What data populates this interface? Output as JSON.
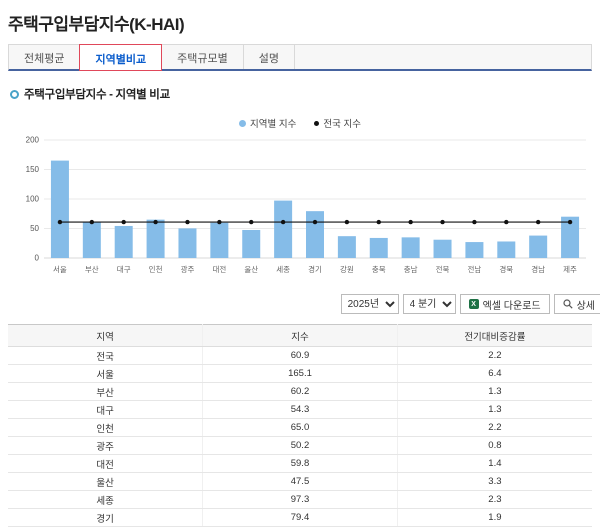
{
  "page": {
    "title": "주택구입부담지수(K-HAI)"
  },
  "tabs": [
    {
      "label": "전체평균",
      "active": false
    },
    {
      "label": "지역별비교",
      "active": true
    },
    {
      "label": "주택규모별",
      "active": false
    },
    {
      "label": "설명",
      "active": false
    }
  ],
  "section": {
    "title": "주택구입부담지수 - 지역별 비교"
  },
  "legend": [
    {
      "label": "지역별 지수",
      "color": "#85bce8"
    },
    {
      "label": "전국 지수",
      "color": "#111111"
    }
  ],
  "controls": {
    "year": "2025년",
    "quarter": "4 분기",
    "excel_label": "엑셀 다운로드",
    "detail_label": "상세"
  },
  "chart_data": {
    "type": "bar",
    "title": "주택구입부담지수 - 지역별 비교",
    "categories": [
      "서울",
      "부산",
      "대구",
      "인천",
      "광주",
      "대전",
      "울산",
      "세종",
      "경기",
      "강원",
      "충북",
      "충남",
      "전북",
      "전남",
      "경북",
      "경남",
      "제주"
    ],
    "series": [
      {
        "name": "지역별 지수",
        "type": "bar",
        "color": "#85bce8",
        "values": [
          165.1,
          60.2,
          54.3,
          65.0,
          50.2,
          59.8,
          47.5,
          97.3,
          79.4,
          37,
          34,
          35,
          31,
          27,
          28,
          38,
          70
        ]
      },
      {
        "name": "전국 지수",
        "type": "line",
        "color": "#111111",
        "values": [
          60.9,
          60.9,
          60.9,
          60.9,
          60.9,
          60.9,
          60.9,
          60.9,
          60.9,
          60.9,
          60.9,
          60.9,
          60.9,
          60.9,
          60.9,
          60.9,
          60.9
        ]
      }
    ],
    "ylim": [
      0,
      200
    ],
    "yticks": [
      0,
      50,
      100,
      150,
      200
    ],
    "grid": true,
    "legend_position": "top-center"
  },
  "table": {
    "columns": [
      "지역",
      "지수",
      "전기대비증감률"
    ],
    "rows": [
      [
        "전국",
        "60.9",
        "2.2"
      ],
      [
        "서울",
        "165.1",
        "6.4"
      ],
      [
        "부산",
        "60.2",
        "1.3"
      ],
      [
        "대구",
        "54.3",
        "1.3"
      ],
      [
        "인천",
        "65.0",
        "2.2"
      ],
      [
        "광주",
        "50.2",
        "0.8"
      ],
      [
        "대전",
        "59.8",
        "1.4"
      ],
      [
        "울산",
        "47.5",
        "3.3"
      ],
      [
        "세종",
        "97.3",
        "2.3"
      ],
      [
        "경기",
        "79.4",
        "1.9"
      ]
    ]
  }
}
